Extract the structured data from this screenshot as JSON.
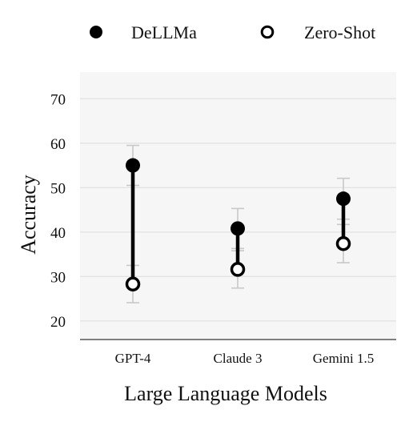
{
  "chart_data": {
    "type": "dumbbell",
    "xlabel": "Large Language Models",
    "ylabel": "Accuracy",
    "categories": [
      "GPT-4",
      "Claude 3",
      "Gemini 1.5"
    ],
    "ylim": [
      16,
      76
    ],
    "yticks": [
      20,
      30,
      40,
      50,
      60,
      70
    ],
    "grid": true,
    "legend_position": "top",
    "series": [
      {
        "name": "DeLLMa",
        "marker": "filled-circle",
        "values": [
          55.0,
          40.8,
          47.5
        ],
        "error_low": [
          50.5,
          36.3,
          42.9
        ],
        "error_high": [
          59.5,
          45.3,
          52.1
        ]
      },
      {
        "name": "Zero-Shot",
        "marker": "open-circle",
        "values": [
          28.3,
          31.6,
          37.4
        ],
        "error_low": [
          24.1,
          27.4,
          33.1
        ],
        "error_high": [
          32.5,
          35.8,
          41.7
        ]
      }
    ],
    "colors": {
      "plot_background": "#f6f6f6",
      "grid": "#e3e3e3",
      "error_bar": "#c8c8c8",
      "connector": "#000000",
      "marker": "#000000"
    }
  }
}
